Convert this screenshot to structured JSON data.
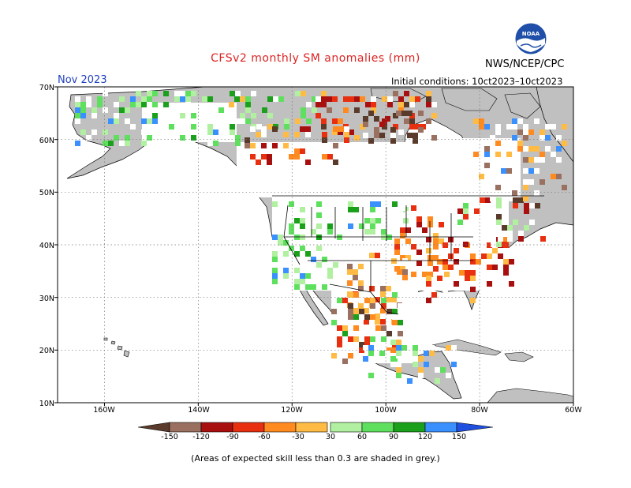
{
  "header": {
    "title": "CFSv2 monthly SM anomalies (mm)",
    "month": "Nov 2023",
    "org": "NWS/NCEP/CPC",
    "initial_conditions": "Initial conditions: 10ct2023–10ct2023",
    "logo_text": "NOAA"
  },
  "footer": {
    "note": "(Areas of expected skill less than 0.3 are shaded in grey.)"
  },
  "map": {
    "lat_labels": [
      "70N",
      "60N",
      "50N",
      "40N",
      "30N",
      "20N",
      "10N"
    ],
    "lon_labels": [
      "160W",
      "140W",
      "120W",
      "100W",
      "80W",
      "60W"
    ],
    "extent": {
      "lon_min": -170,
      "lon_max": -60,
      "lat_min": 10,
      "lat_max": 70
    },
    "colors": {
      "land_no_skill": "#c0c0c0",
      "ocean": "#ffffff",
      "near_normal": "#ffffff"
    }
  },
  "colorbar": {
    "labels": [
      "-150",
      "-120",
      "-90",
      "-60",
      "-30",
      "30",
      "60",
      "90",
      "120",
      "150"
    ],
    "bins": [
      {
        "color": "#5a3a2a"
      },
      {
        "color": "#9a7060"
      },
      {
        "color": "#a81010"
      },
      {
        "color": "#e83010"
      },
      {
        "color": "#ff8a20"
      },
      {
        "color": "#ffbb44"
      },
      {
        "color": "#ffffff"
      },
      {
        "color": "#b0f0a0"
      },
      {
        "color": "#5ee05e"
      },
      {
        "color": "#1aa01a"
      },
      {
        "color": "#3a90ff"
      },
      {
        "color": "#2050e0"
      }
    ]
  }
}
